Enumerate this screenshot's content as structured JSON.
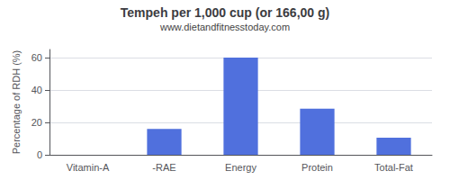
{
  "chart_data": {
    "type": "bar",
    "title": "Tempeh per 1,000 cup (or 166,00 g)",
    "subtitle": "www.dietandfitnesstoday.com",
    "categories": [
      "Vitamin-A",
      "-RAE",
      "Energy",
      "Protein",
      "Total-Fat"
    ],
    "values": [
      0,
      16,
      60,
      28.5,
      10.5
    ],
    "ylabel": "Percentage of RDH (%)",
    "ylim": [
      0,
      65
    ],
    "yticks": [
      0,
      20,
      40,
      60
    ],
    "grid": true
  }
}
